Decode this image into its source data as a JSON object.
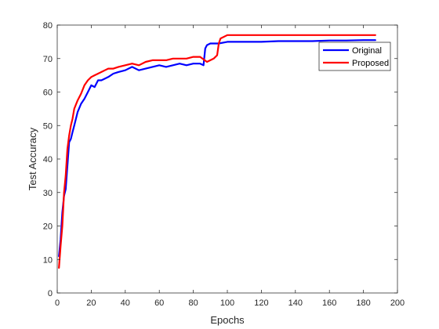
{
  "chart_data": {
    "type": "line",
    "title": "",
    "xlabel": "Epochs",
    "ylabel": "Test Accuracy",
    "xlim": [
      0,
      200
    ],
    "ylim": [
      0,
      80
    ],
    "xticks": [
      0,
      20,
      40,
      60,
      80,
      100,
      120,
      140,
      160,
      180,
      200
    ],
    "yticks": [
      0,
      10,
      20,
      30,
      40,
      50,
      60,
      70,
      80
    ],
    "grid": false,
    "legend_position": "top-right",
    "series": [
      {
        "name": "Original",
        "color": "#0000ff",
        "x": [
          1,
          2,
          3,
          4,
          5,
          6,
          7,
          8,
          9,
          10,
          12,
          14,
          16,
          18,
          20,
          22,
          24,
          26,
          28,
          30,
          33,
          36,
          40,
          44,
          48,
          52,
          56,
          60,
          64,
          68,
          72,
          76,
          80,
          84,
          86,
          87,
          88,
          90,
          95,
          100,
          110,
          120,
          130,
          140,
          150,
          160,
          170,
          180,
          187
        ],
        "y": [
          11,
          16,
          24,
          29,
          31,
          38,
          45,
          46,
          48,
          50,
          54,
          56.5,
          58,
          60,
          62,
          61.5,
          63.5,
          63.5,
          64,
          64.5,
          65.5,
          66,
          66.5,
          67.5,
          66.5,
          67,
          67.5,
          68,
          67.5,
          68,
          68.5,
          68,
          68.5,
          68.5,
          68,
          73,
          74,
          74.5,
          74.5,
          75,
          75,
          75,
          75.2,
          75.2,
          75.2,
          75.4,
          75.4,
          75.5,
          75.5
        ]
      },
      {
        "name": "Proposed",
        "color": "#ff0000",
        "x": [
          1,
          2,
          3,
          4,
          5,
          6,
          7,
          8,
          9,
          10,
          12,
          14,
          16,
          18,
          20,
          22,
          24,
          26,
          28,
          30,
          33,
          36,
          40,
          44,
          48,
          52,
          56,
          60,
          64,
          68,
          72,
          76,
          80,
          84,
          88,
          92,
          94,
          95,
          96,
          100,
          110,
          120,
          130,
          140,
          150,
          160,
          170,
          180,
          187
        ],
        "y": [
          7.5,
          14,
          20,
          30,
          35,
          43,
          47,
          50,
          52,
          55,
          57.5,
          59.5,
          62,
          63.5,
          64.5,
          65,
          65.5,
          66,
          66.5,
          67,
          67,
          67.5,
          68,
          68.5,
          68,
          69,
          69.5,
          69.5,
          69.5,
          70,
          70,
          70,
          70.5,
          70.5,
          69,
          70,
          71,
          74.5,
          76,
          77,
          77,
          77,
          77,
          77,
          77,
          77,
          77,
          77,
          77
        ]
      }
    ]
  }
}
